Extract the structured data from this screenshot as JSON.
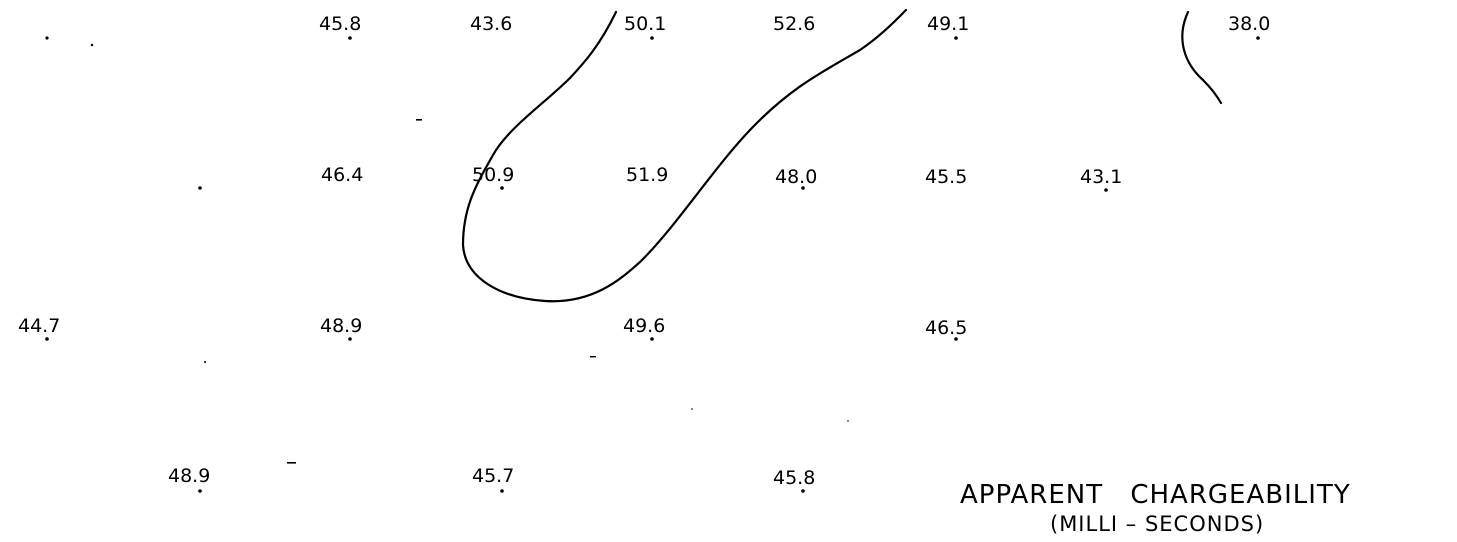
{
  "caption": {
    "title": "APPARENT   CHARGEABILITY",
    "subtitle": "(MILLI – SECONDS)"
  },
  "stations": [
    {
      "id": "s01",
      "value": "45.8"
    },
    {
      "id": "s02",
      "value": "43.6"
    },
    {
      "id": "s03",
      "value": "50.1"
    },
    {
      "id": "s04",
      "value": "52.6"
    },
    {
      "id": "s05",
      "value": "49.1"
    },
    {
      "id": "s06",
      "value": "38.0"
    },
    {
      "id": "s07",
      "value": "46.4"
    },
    {
      "id": "s08",
      "value": "50.9"
    },
    {
      "id": "s09",
      "value": "51.9"
    },
    {
      "id": "s10",
      "value": "48.0"
    },
    {
      "id": "s11",
      "value": "45.5"
    },
    {
      "id": "s12",
      "value": "43.1"
    },
    {
      "id": "s13",
      "value": "44.7"
    },
    {
      "id": "s14",
      "value": "48.9"
    },
    {
      "id": "s15",
      "value": "49.6"
    },
    {
      "id": "s16",
      "value": "46.5"
    },
    {
      "id": "s17",
      "value": "48.9"
    },
    {
      "id": "s18",
      "value": "45.7"
    },
    {
      "id": "s19",
      "value": "45.8"
    }
  ],
  "contours": [
    {
      "name": "contour-loop"
    },
    {
      "name": "contour-right-arc"
    }
  ],
  "colors": {
    "ink": "#000000",
    "paper": "#ffffff"
  }
}
